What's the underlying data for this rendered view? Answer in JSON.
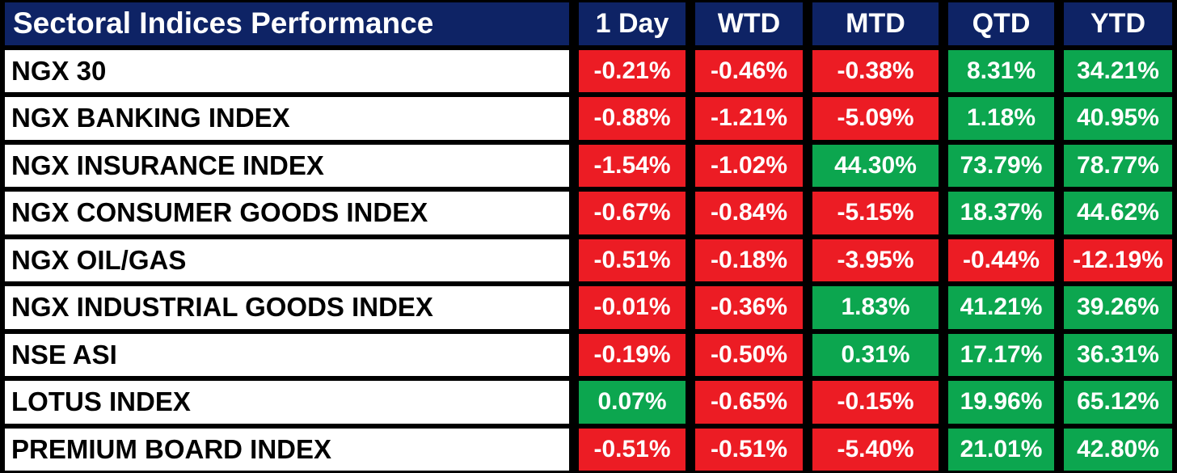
{
  "colors": {
    "header_bg": "#0E2365",
    "negative_bg": "#EC1C24",
    "positive_bg": "#0CA64F",
    "grid": "#000000",
    "row_bg": "#FFFFFF",
    "header_text": "#FFFFFF",
    "value_text": "#FFFFFF",
    "label_text": "#000000"
  },
  "chart_data": {
    "type": "table",
    "title": "Sectoral Indices Performance",
    "columns": [
      "1 Day",
      "WTD",
      "MTD",
      "QTD",
      "YTD"
    ],
    "value_format": "percent",
    "cell_color_rule": "negative values = red background, non-negative values = green background",
    "rows": [
      {
        "label": "NGX 30",
        "display": [
          "-0.21%",
          "-0.46%",
          "-0.38%",
          "8.31%",
          "34.21%"
        ],
        "values": [
          -0.21,
          -0.46,
          -0.38,
          8.31,
          34.21
        ]
      },
      {
        "label": "NGX BANKING INDEX",
        "display": [
          "-0.88%",
          "-1.21%",
          "-5.09%",
          "1.18%",
          "40.95%"
        ],
        "values": [
          -0.88,
          -1.21,
          -5.09,
          1.18,
          40.95
        ]
      },
      {
        "label": "NGX INSURANCE INDEX",
        "display": [
          "-1.54%",
          "-1.02%",
          "44.30%",
          "73.79%",
          "78.77%"
        ],
        "values": [
          -1.54,
          -1.02,
          44.3,
          73.79,
          78.77
        ]
      },
      {
        "label": "NGX CONSUMER GOODS INDEX",
        "display": [
          "-0.67%",
          "-0.84%",
          "-5.15%",
          "18.37%",
          "44.62%"
        ],
        "values": [
          -0.67,
          -0.84,
          -5.15,
          18.37,
          44.62
        ]
      },
      {
        "label": "NGX OIL/GAS",
        "display": [
          "-0.51%",
          "-0.18%",
          "-3.95%",
          "-0.44%",
          "-12.19%"
        ],
        "values": [
          -0.51,
          -0.18,
          -3.95,
          -0.44,
          -12.19
        ]
      },
      {
        "label": "NGX INDUSTRIAL GOODS INDEX",
        "display": [
          "-0.01%",
          "-0.36%",
          "1.83%",
          "41.21%",
          "39.26%"
        ],
        "values": [
          -0.01,
          -0.36,
          1.83,
          41.21,
          39.26
        ]
      },
      {
        "label": "NSE ASI",
        "display": [
          "-0.19%",
          "-0.50%",
          "0.31%",
          "17.17%",
          "36.31%"
        ],
        "values": [
          -0.19,
          -0.5,
          0.31,
          17.17,
          36.31
        ]
      },
      {
        "label": "LOTUS INDEX",
        "display": [
          "0.07%",
          "-0.65%",
          "-0.15%",
          "19.96%",
          "65.12%"
        ],
        "values": [
          0.07,
          -0.65,
          -0.15,
          19.96,
          65.12
        ]
      },
      {
        "label": "PREMIUM BOARD INDEX",
        "display": [
          "-0.51%",
          "-0.51%",
          "-5.40%",
          "21.01%",
          "42.80%"
        ],
        "values": [
          -0.51,
          -0.51,
          -5.4,
          21.01,
          42.8
        ]
      }
    ]
  }
}
